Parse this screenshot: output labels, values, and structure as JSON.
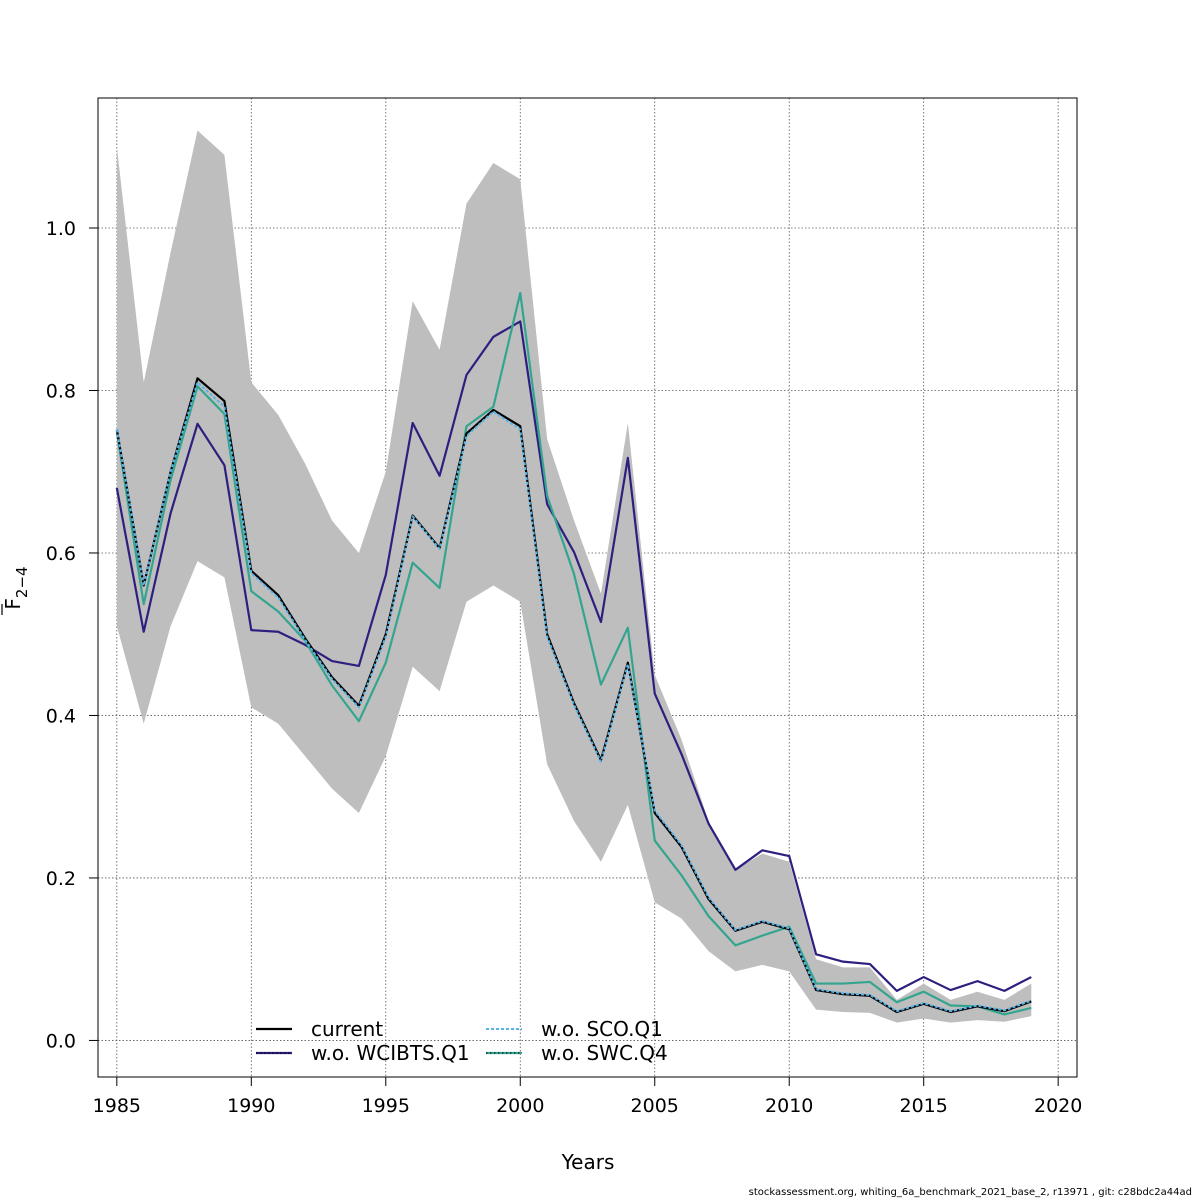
{
  "chart_data": {
    "type": "line",
    "xlabel": "Years",
    "ylabel": "F",
    "ylabel_subscript": "2−4",
    "xlim": [
      1984.3,
      2020.7
    ],
    "ylim": [
      -0.045,
      1.16
    ],
    "xticks": [
      1985,
      1990,
      1995,
      2000,
      2005,
      2010,
      2015,
      2020
    ],
    "yticks": [
      0.0,
      0.2,
      0.4,
      0.6,
      0.8,
      1.0
    ],
    "ytick_labels": [
      "0.0",
      "0.2",
      "0.4",
      "0.6",
      "0.8",
      "1.0"
    ],
    "grid": true,
    "legend_position": "bottom-left",
    "x": [
      1985,
      1986,
      1987,
      1988,
      1989,
      1990,
      1991,
      1992,
      1993,
      1994,
      1995,
      1996,
      1997,
      1998,
      1999,
      2000,
      2001,
      2002,
      2003,
      2004,
      2005,
      2006,
      2007,
      2008,
      2009,
      2010,
      2011,
      2012,
      2013,
      2014,
      2015,
      2016,
      2017,
      2018,
      2019
    ],
    "confidence_band": {
      "color": "#bebebe",
      "upper": [
        1.1,
        0.81,
        0.97,
        1.12,
        1.09,
        0.81,
        0.77,
        0.71,
        0.64,
        0.6,
        0.7,
        0.91,
        0.85,
        1.03,
        1.08,
        1.06,
        0.74,
        0.64,
        0.55,
        0.76,
        0.45,
        0.37,
        0.27,
        0.21,
        0.23,
        0.22,
        0.1,
        0.09,
        0.09,
        0.05,
        0.07,
        0.05,
        0.06,
        0.05,
        0.07
      ],
      "lower": [
        0.51,
        0.39,
        0.51,
        0.59,
        0.57,
        0.41,
        0.39,
        0.35,
        0.31,
        0.28,
        0.35,
        0.46,
        0.43,
        0.54,
        0.56,
        0.54,
        0.34,
        0.27,
        0.22,
        0.29,
        0.17,
        0.15,
        0.11,
        0.085,
        0.093,
        0.085,
        0.038,
        0.035,
        0.034,
        0.022,
        0.027,
        0.022,
        0.025,
        0.023,
        0.03
      ]
    },
    "series": [
      {
        "name": "current",
        "color": "#000000",
        "dashed": false,
        "values": [
          0.752,
          0.56,
          0.7,
          0.815,
          0.787,
          0.578,
          0.548,
          0.495,
          0.447,
          0.412,
          0.5,
          0.646,
          0.606,
          0.747,
          0.776,
          0.756,
          0.5,
          0.415,
          0.345,
          0.465,
          0.28,
          0.238,
          0.174,
          0.135,
          0.146,
          0.137,
          0.062,
          0.057,
          0.055,
          0.035,
          0.045,
          0.035,
          0.042,
          0.036,
          0.048
        ]
      },
      {
        "name": "w.o. WCIBTS.Q1",
        "color": "#2e1f7f",
        "dashed": false,
        "values": [
          0.68,
          0.503,
          0.649,
          0.759,
          0.708,
          0.505,
          0.503,
          0.487,
          0.467,
          0.461,
          0.573,
          0.76,
          0.695,
          0.819,
          0.866,
          0.885,
          0.66,
          0.601,
          0.515,
          0.717,
          0.427,
          0.352,
          0.267,
          0.21,
          0.234,
          0.227,
          0.106,
          0.097,
          0.094,
          0.061,
          0.078,
          0.062,
          0.073,
          0.061,
          0.078
        ]
      },
      {
        "name": "w.o. SCO.Q1",
        "color": "#56b4e9",
        "dashed": true,
        "values": [
          0.752,
          0.56,
          0.7,
          0.81,
          0.78,
          0.575,
          0.545,
          0.493,
          0.445,
          0.41,
          0.497,
          0.645,
          0.605,
          0.744,
          0.774,
          0.752,
          0.497,
          0.413,
          0.343,
          0.463,
          0.283,
          0.24,
          0.176,
          0.136,
          0.147,
          0.138,
          0.063,
          0.058,
          0.056,
          0.036,
          0.046,
          0.036,
          0.043,
          0.037,
          0.049
        ]
      },
      {
        "name": "w.o. SWC.Q4",
        "color": "#33a58f",
        "dashed": false,
        "values": [
          0.75,
          0.537,
          0.69,
          0.805,
          0.771,
          0.553,
          0.528,
          0.492,
          0.437,
          0.393,
          0.465,
          0.588,
          0.557,
          0.756,
          0.78,
          0.92,
          0.67,
          0.574,
          0.438,
          0.508,
          0.246,
          0.203,
          0.153,
          0.117,
          0.129,
          0.14,
          0.07,
          0.07,
          0.072,
          0.047,
          0.06,
          0.043,
          0.042,
          0.032,
          0.04
        ]
      }
    ]
  },
  "footer_text": "stockassessment.org, whiting_6a_benchmark_2021_base_2, r13971 , git: c28bdc2a44ad"
}
